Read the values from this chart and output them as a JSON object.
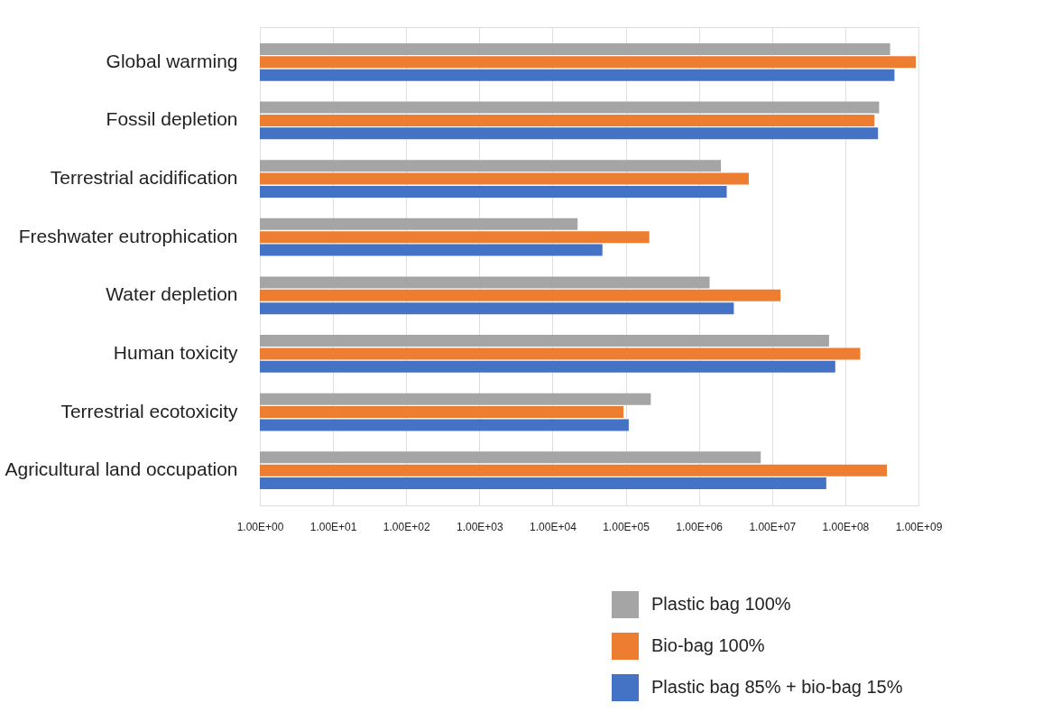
{
  "chart_data": {
    "type": "bar",
    "orientation": "horizontal",
    "log": "x",
    "grid": "x",
    "legend": "bottom right",
    "categories": [
      "Global warming",
      "Fossil depletion",
      "Terrestrial acidification",
      "Freshwater eutrophication",
      "Water depletion",
      "Human toxicity",
      "Terrestrial ecotoxicity",
      "Agricultural land occupation"
    ],
    "series": [
      {
        "name": "Plastic bag 100%",
        "color": "#a5a5a5",
        "values": [
          410000000.0,
          290000000.0,
          2000000.0,
          22000.0,
          1400000.0,
          60000000.0,
          220000.0,
          7000000.0
        ]
      },
      {
        "name": "Bio-bag 100%",
        "color": "#ed7d31",
        "values": [
          920000000.0,
          250000000.0,
          4800000.0,
          210000.0,
          13000000.0,
          160000000.0,
          93000.0,
          370000000.0
        ]
      },
      {
        "name": "Plastic bag 85% + bio-bag 15%",
        "color": "#4472c4",
        "values": [
          470000000.0,
          280000000.0,
          2400000.0,
          48000.0,
          3000000.0,
          73000000.0,
          110000.0,
          55000000.0
        ]
      }
    ],
    "xlim": [
      1,
      1000000000.0
    ],
    "xticks": [
      {
        "value": 1,
        "label": "1.00E+00"
      },
      {
        "value": 10,
        "label": "1.00E+01"
      },
      {
        "value": 100,
        "label": "1.00E+02"
      },
      {
        "value": 1000,
        "label": "1.00E+03"
      },
      {
        "value": 10000,
        "label": "1.00E+04"
      },
      {
        "value": 100000,
        "label": "1.00E+05"
      },
      {
        "value": 1000000,
        "label": "1.00E+06"
      },
      {
        "value": 10000000,
        "label": "1.00E+07"
      },
      {
        "value": 100000000,
        "label": "1.00E+08"
      },
      {
        "value": 1000000000,
        "label": "1.00E+09"
      }
    ]
  }
}
